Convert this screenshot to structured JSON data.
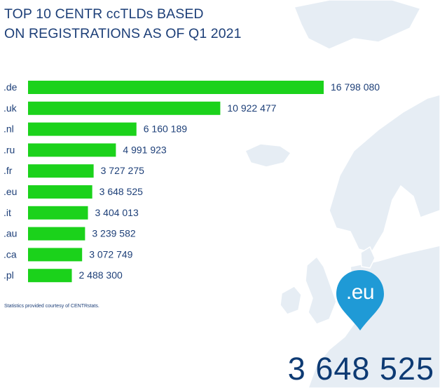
{
  "title": {
    "line1": "TOP 10 CENTR ccTLDs BASED",
    "line2": "ON REGISTRATIONS AS OF Q1 2021"
  },
  "chart_data": {
    "type": "bar",
    "orientation": "horizontal",
    "categories": [
      ".de",
      ".uk",
      ".nl",
      ".ru",
      ".fr",
      ".eu",
      ".it",
      ".au",
      ".ca",
      ".pl"
    ],
    "values": [
      16798080,
      10922477,
      6160189,
      4991923,
      3727275,
      3648525,
      3404013,
      3239582,
      3072749,
      2488300
    ],
    "value_labels": [
      "16 798 080",
      "10 922 477",
      "6 160 189",
      "4 991 923",
      "3 727 275",
      "3 648 525",
      "3 404 013",
      "3 239 582",
      "3 072 749",
      "2 488 300"
    ],
    "bar_color": "#1bd21b",
    "grid": false
  },
  "credit": "Statistics provided courtesy of CENTRstats.",
  "highlight": {
    "label": ".eu",
    "value": "3 648 525",
    "pin_color": "#1f9ad6",
    "value_color": "#0d3a73"
  },
  "colors": {
    "title": "#1d3f78",
    "map_land": "#e6edf4",
    "map_outline": "#c9d6e3"
  }
}
